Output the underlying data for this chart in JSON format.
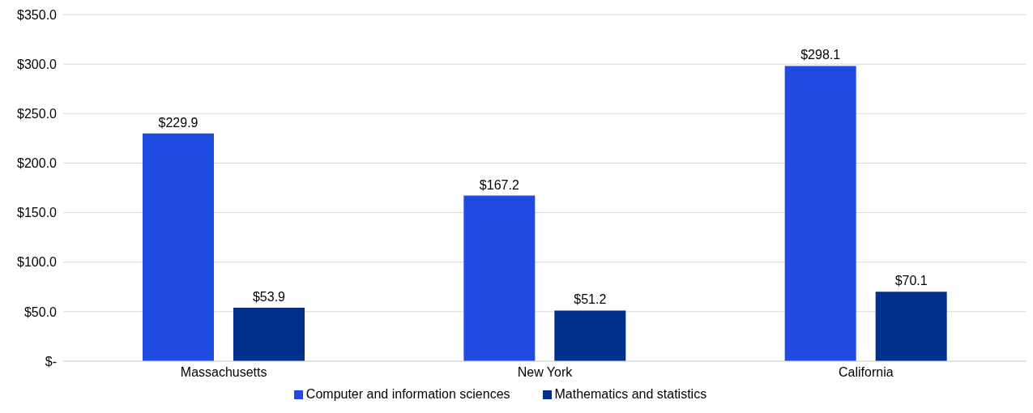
{
  "chart_data": {
    "type": "bar",
    "categories": [
      "Massachusetts",
      "New York",
      "California"
    ],
    "series": [
      {
        "name": "Computer and information sciences",
        "color": "#1f4be3",
        "values": [
          229.9,
          167.2,
          298.1
        ],
        "value_labels": [
          "$229.9",
          "$167.2",
          "$298.1"
        ]
      },
      {
        "name": "Mathematics and statistics",
        "color": "#00308a",
        "values": [
          53.9,
          51.2,
          70.1
        ],
        "value_labels": [
          "$53.9",
          "$51.2",
          "$70.1"
        ]
      }
    ],
    "ylim": [
      0,
      350
    ],
    "yticks": [
      {
        "value": 0,
        "label": "$-"
      },
      {
        "value": 50,
        "label": "$50.0"
      },
      {
        "value": 100,
        "label": "$100.0"
      },
      {
        "value": 150,
        "label": "$150.0"
      },
      {
        "value": 200,
        "label": "$200.0"
      },
      {
        "value": 250,
        "label": "$250.0"
      },
      {
        "value": 300,
        "label": "$300.0"
      },
      {
        "value": 350,
        "label": "$350.0"
      }
    ],
    "grid": "y",
    "legend": "bottom"
  }
}
